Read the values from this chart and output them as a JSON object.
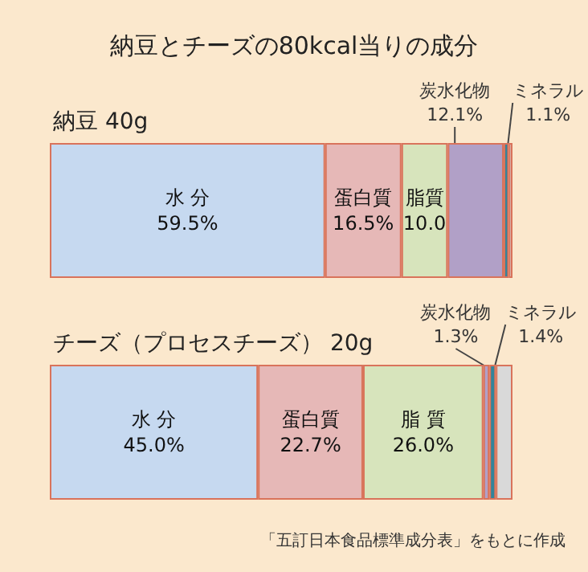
{
  "chart_data": [
    {
      "type": "bar",
      "orientation": "horizontal",
      "stacked": true,
      "title": "納豆とチーズの80kcal当りの成分",
      "subtitle": "納豆 40g",
      "categories": [
        null
      ],
      "xlim": [
        0,
        100
      ],
      "tick_labels": false,
      "grid": false,
      "legend": false,
      "series": [
        {
          "name": "水 分",
          "color": "#c6d9f0",
          "values": [
            59.5
          ],
          "value_labels": [
            "59.5%"
          ]
        },
        {
          "name": "蛋白質",
          "color": "#e6b8b7",
          "values": [
            16.5
          ],
          "value_labels": [
            "16.5%"
          ]
        },
        {
          "name": "脂質",
          "color": "#d7e4bc",
          "values": [
            10.0
          ],
          "value_labels": [
            "10.0"
          ]
        },
        {
          "name": "炭水化物",
          "color": "#b1a0c7",
          "values": [
            12.1
          ],
          "value_labels": [
            "12.1%"
          ]
        },
        {
          "name": "ミネラル",
          "color": "#31849b",
          "values": [
            1.1
          ],
          "value_labels": [
            "1.1%"
          ]
        },
        {
          "color": "#d9d9d9",
          "values": [
            0.8
          ]
        }
      ]
    },
    {
      "type": "bar",
      "orientation": "horizontal",
      "stacked": true,
      "title": "チーズ（プロセスチーズ） 20g",
      "categories": [
        null
      ],
      "xlim": [
        0,
        100
      ],
      "tick_labels": false,
      "grid": false,
      "legend": false,
      "annotations": [
        "「五訂日本食品標準成分表」をもとに作成"
      ],
      "series": [
        {
          "name": "水 分",
          "color": "#c6d9f0",
          "values": [
            45.0
          ],
          "value_labels": [
            "45.0%"
          ]
        },
        {
          "name": "蛋白質",
          "color": "#e6b8b7",
          "values": [
            22.7
          ],
          "value_labels": [
            "22.7%"
          ]
        },
        {
          "name": "脂 質",
          "color": "#d7e4bc",
          "values": [
            26.0
          ],
          "value_labels": [
            "26.0%"
          ]
        },
        {
          "name": "炭水化物",
          "color": "#b1a0c7",
          "values": [
            1.3
          ],
          "value_labels": [
            "1.3%"
          ]
        },
        {
          "name": "ミネラル",
          "color": "#31849b",
          "values": [
            1.4
          ],
          "value_labels": [
            "1.4%"
          ]
        },
        {
          "color": "#d9d9d9",
          "values": [
            3.6
          ]
        }
      ]
    }
  ]
}
